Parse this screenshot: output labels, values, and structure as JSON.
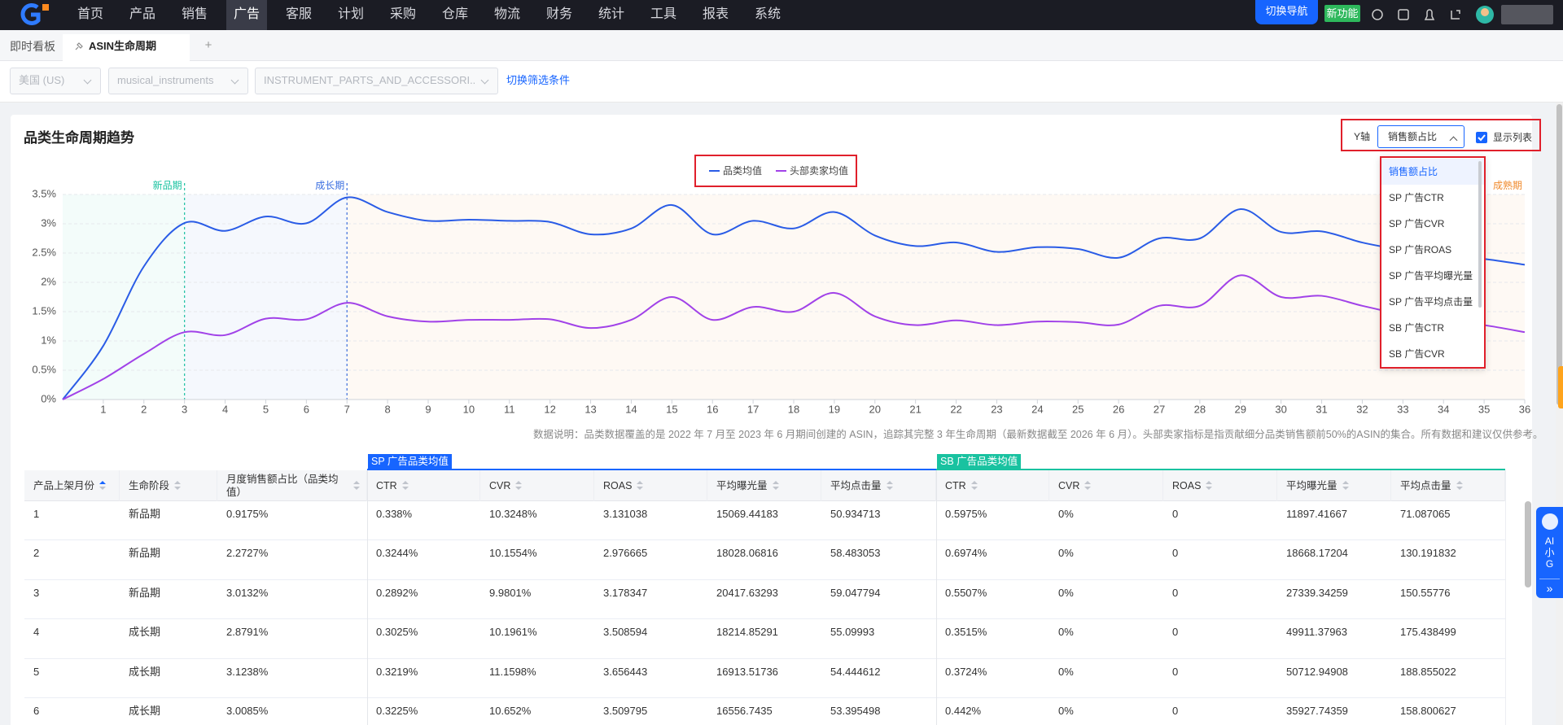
{
  "nav": {
    "items": [
      "首页",
      "产品",
      "销售",
      "广告",
      "客服",
      "计划",
      "采购",
      "仓库",
      "物流",
      "财务",
      "统计",
      "工具",
      "报表",
      "系统"
    ],
    "active": 3,
    "buttons": [
      "切换导航",
      "新功能"
    ]
  },
  "tabs": {
    "items": [
      "即时看板",
      "ASIN生命周期"
    ],
    "active": 1,
    "add": "+"
  },
  "filters": {
    "selects": [
      "美国 (US)",
      "musical_instruments",
      "INSTRUMENT_PARTS_AND_ACCESSORI..."
    ],
    "link": "切换筛选条件"
  },
  "panel": {
    "title": "品类生命周期趋势",
    "y_axis_label": "Y轴",
    "y_axis_value": "销售额占比",
    "show_list": "显示列表",
    "dropdown": [
      "销售额占比",
      "SP 广告CTR",
      "SP 广告CVR",
      "SP 广告ROAS",
      "SP 广告平均曝光量",
      "SP 广告平均点击量",
      "SB 广告CTR",
      "SB 广告CVR"
    ],
    "dropdown_selected": 0
  },
  "chart_data": {
    "type": "line",
    "x": [
      0,
      1,
      2,
      3,
      4,
      5,
      6,
      7,
      8,
      9,
      10,
      11,
      12,
      13,
      14,
      15,
      16,
      17,
      18,
      19,
      20,
      21,
      22,
      23,
      24,
      25,
      26,
      27,
      28,
      29,
      30,
      31,
      32,
      33,
      34,
      35,
      36
    ],
    "xlim": [
      0,
      36
    ],
    "xticks": [
      1,
      2,
      3,
      4,
      5,
      6,
      7,
      8,
      9,
      10,
      11,
      12,
      13,
      14,
      15,
      16,
      17,
      18,
      19,
      20,
      21,
      22,
      23,
      24,
      25,
      26,
      27,
      28,
      29,
      30,
      31,
      32,
      33,
      34,
      35,
      36
    ],
    "ylim": [
      0,
      3.5
    ],
    "yticks": [
      {
        "value": 0,
        "label": "0%"
      },
      {
        "value": 0.5,
        "label": "0.5%"
      },
      {
        "value": 1,
        "label": "1%"
      },
      {
        "value": 1.5,
        "label": "1.5%"
      },
      {
        "value": 2,
        "label": "2%"
      },
      {
        "value": 2.5,
        "label": "2.5%"
      },
      {
        "value": 3,
        "label": "3%"
      },
      {
        "value": 3.5,
        "label": "3.5%"
      }
    ],
    "grid": true,
    "series": [
      {
        "name": "品类均值",
        "color": "#2a5ce6",
        "values": [
          0,
          0.9175,
          2.2727,
          3.0132,
          2.8791,
          3.1238,
          3.0085,
          3.45,
          3.2,
          3.05,
          3.07,
          3.05,
          3.03,
          2.82,
          2.92,
          3.32,
          2.82,
          3.05,
          2.92,
          3.2,
          2.8,
          2.62,
          2.68,
          2.52,
          2.6,
          2.57,
          2.42,
          2.75,
          2.75,
          3.25,
          2.86,
          2.87,
          2.68,
          2.55,
          2.45,
          2.4,
          2.3
        ]
      },
      {
        "name": "头部卖家均值",
        "color": "#a142e8",
        "values": [
          0,
          0.35,
          0.78,
          1.15,
          1.1,
          1.38,
          1.37,
          1.65,
          1.42,
          1.33,
          1.36,
          1.36,
          1.37,
          1.22,
          1.36,
          1.75,
          1.36,
          1.58,
          1.5,
          1.82,
          1.42,
          1.27,
          1.35,
          1.27,
          1.33,
          1.32,
          1.28,
          1.6,
          1.6,
          2.12,
          1.75,
          1.77,
          1.6,
          1.45,
          1.35,
          1.27,
          1.15
        ]
      }
    ],
    "phases": [
      {
        "label": "新品期",
        "x": 3,
        "color": "#19c2a0"
      },
      {
        "label": "成长期",
        "x": 7,
        "color": "#3b6fe0"
      },
      {
        "label": "成熟期",
        "x": 36,
        "color": "#f08a2c"
      }
    ],
    "note": "数据说明：品类数据覆盖的是 2022 年 7 月至 2023 年 6 月期间创建的 ASIN，追踪其完整 3 年生命周期（最新数据截至 2026 年 6 月）。头部卖家指标是指贡献细分品类销售额前50%的ASIN的集合。所有数据和建议仅供参考。"
  },
  "table": {
    "groups": [
      {
        "label": "SP 广告品类均值",
        "color": "#1765ff"
      },
      {
        "label": "SB 广告品类均值",
        "color": "#19c2a0"
      }
    ],
    "header": [
      "产品上架月份",
      "生命阶段",
      "月度销售额占比（品类均值）",
      "CTR",
      "CVR",
      "ROAS",
      "平均曝光量",
      "平均点击量",
      "CTR",
      "CVR",
      "ROAS",
      "平均曝光量",
      "平均点击量"
    ],
    "rows": [
      [
        "1",
        "新品期",
        "0.9175%",
        "0.338%",
        "10.3248%",
        "3.131038",
        "15069.44183",
        "50.934713",
        "0.5975%",
        "0%",
        "0",
        "11897.41667",
        "71.087065"
      ],
      [
        "2",
        "新品期",
        "2.2727%",
        "0.3244%",
        "10.1554%",
        "2.976665",
        "18028.06816",
        "58.483053",
        "0.6974%",
        "0%",
        "0",
        "18668.17204",
        "130.191832"
      ],
      [
        "3",
        "新品期",
        "3.0132%",
        "0.2892%",
        "9.9801%",
        "3.178347",
        "20417.63293",
        "59.047794",
        "0.5507%",
        "0%",
        "0",
        "27339.34259",
        "150.55776"
      ],
      [
        "4",
        "成长期",
        "2.8791%",
        "0.3025%",
        "10.1961%",
        "3.508594",
        "18214.85291",
        "55.09993",
        "0.3515%",
        "0%",
        "0",
        "49911.37963",
        "175.438499"
      ],
      [
        "5",
        "成长期",
        "3.1238%",
        "0.3219%",
        "11.1598%",
        "3.656443",
        "16913.51736",
        "54.444612",
        "0.3724%",
        "0%",
        "0",
        "50712.94908",
        "188.855022"
      ],
      [
        "6",
        "成长期",
        "3.0085%",
        "0.3225%",
        "10.652%",
        "3.509795",
        "16556.7435",
        "53.395498",
        "0.442%",
        "0%",
        "0",
        "35927.74359",
        "158.800627"
      ]
    ]
  },
  "ai_widget": {
    "lines": [
      "AI",
      "小",
      "G"
    ],
    "toggle": "»"
  }
}
